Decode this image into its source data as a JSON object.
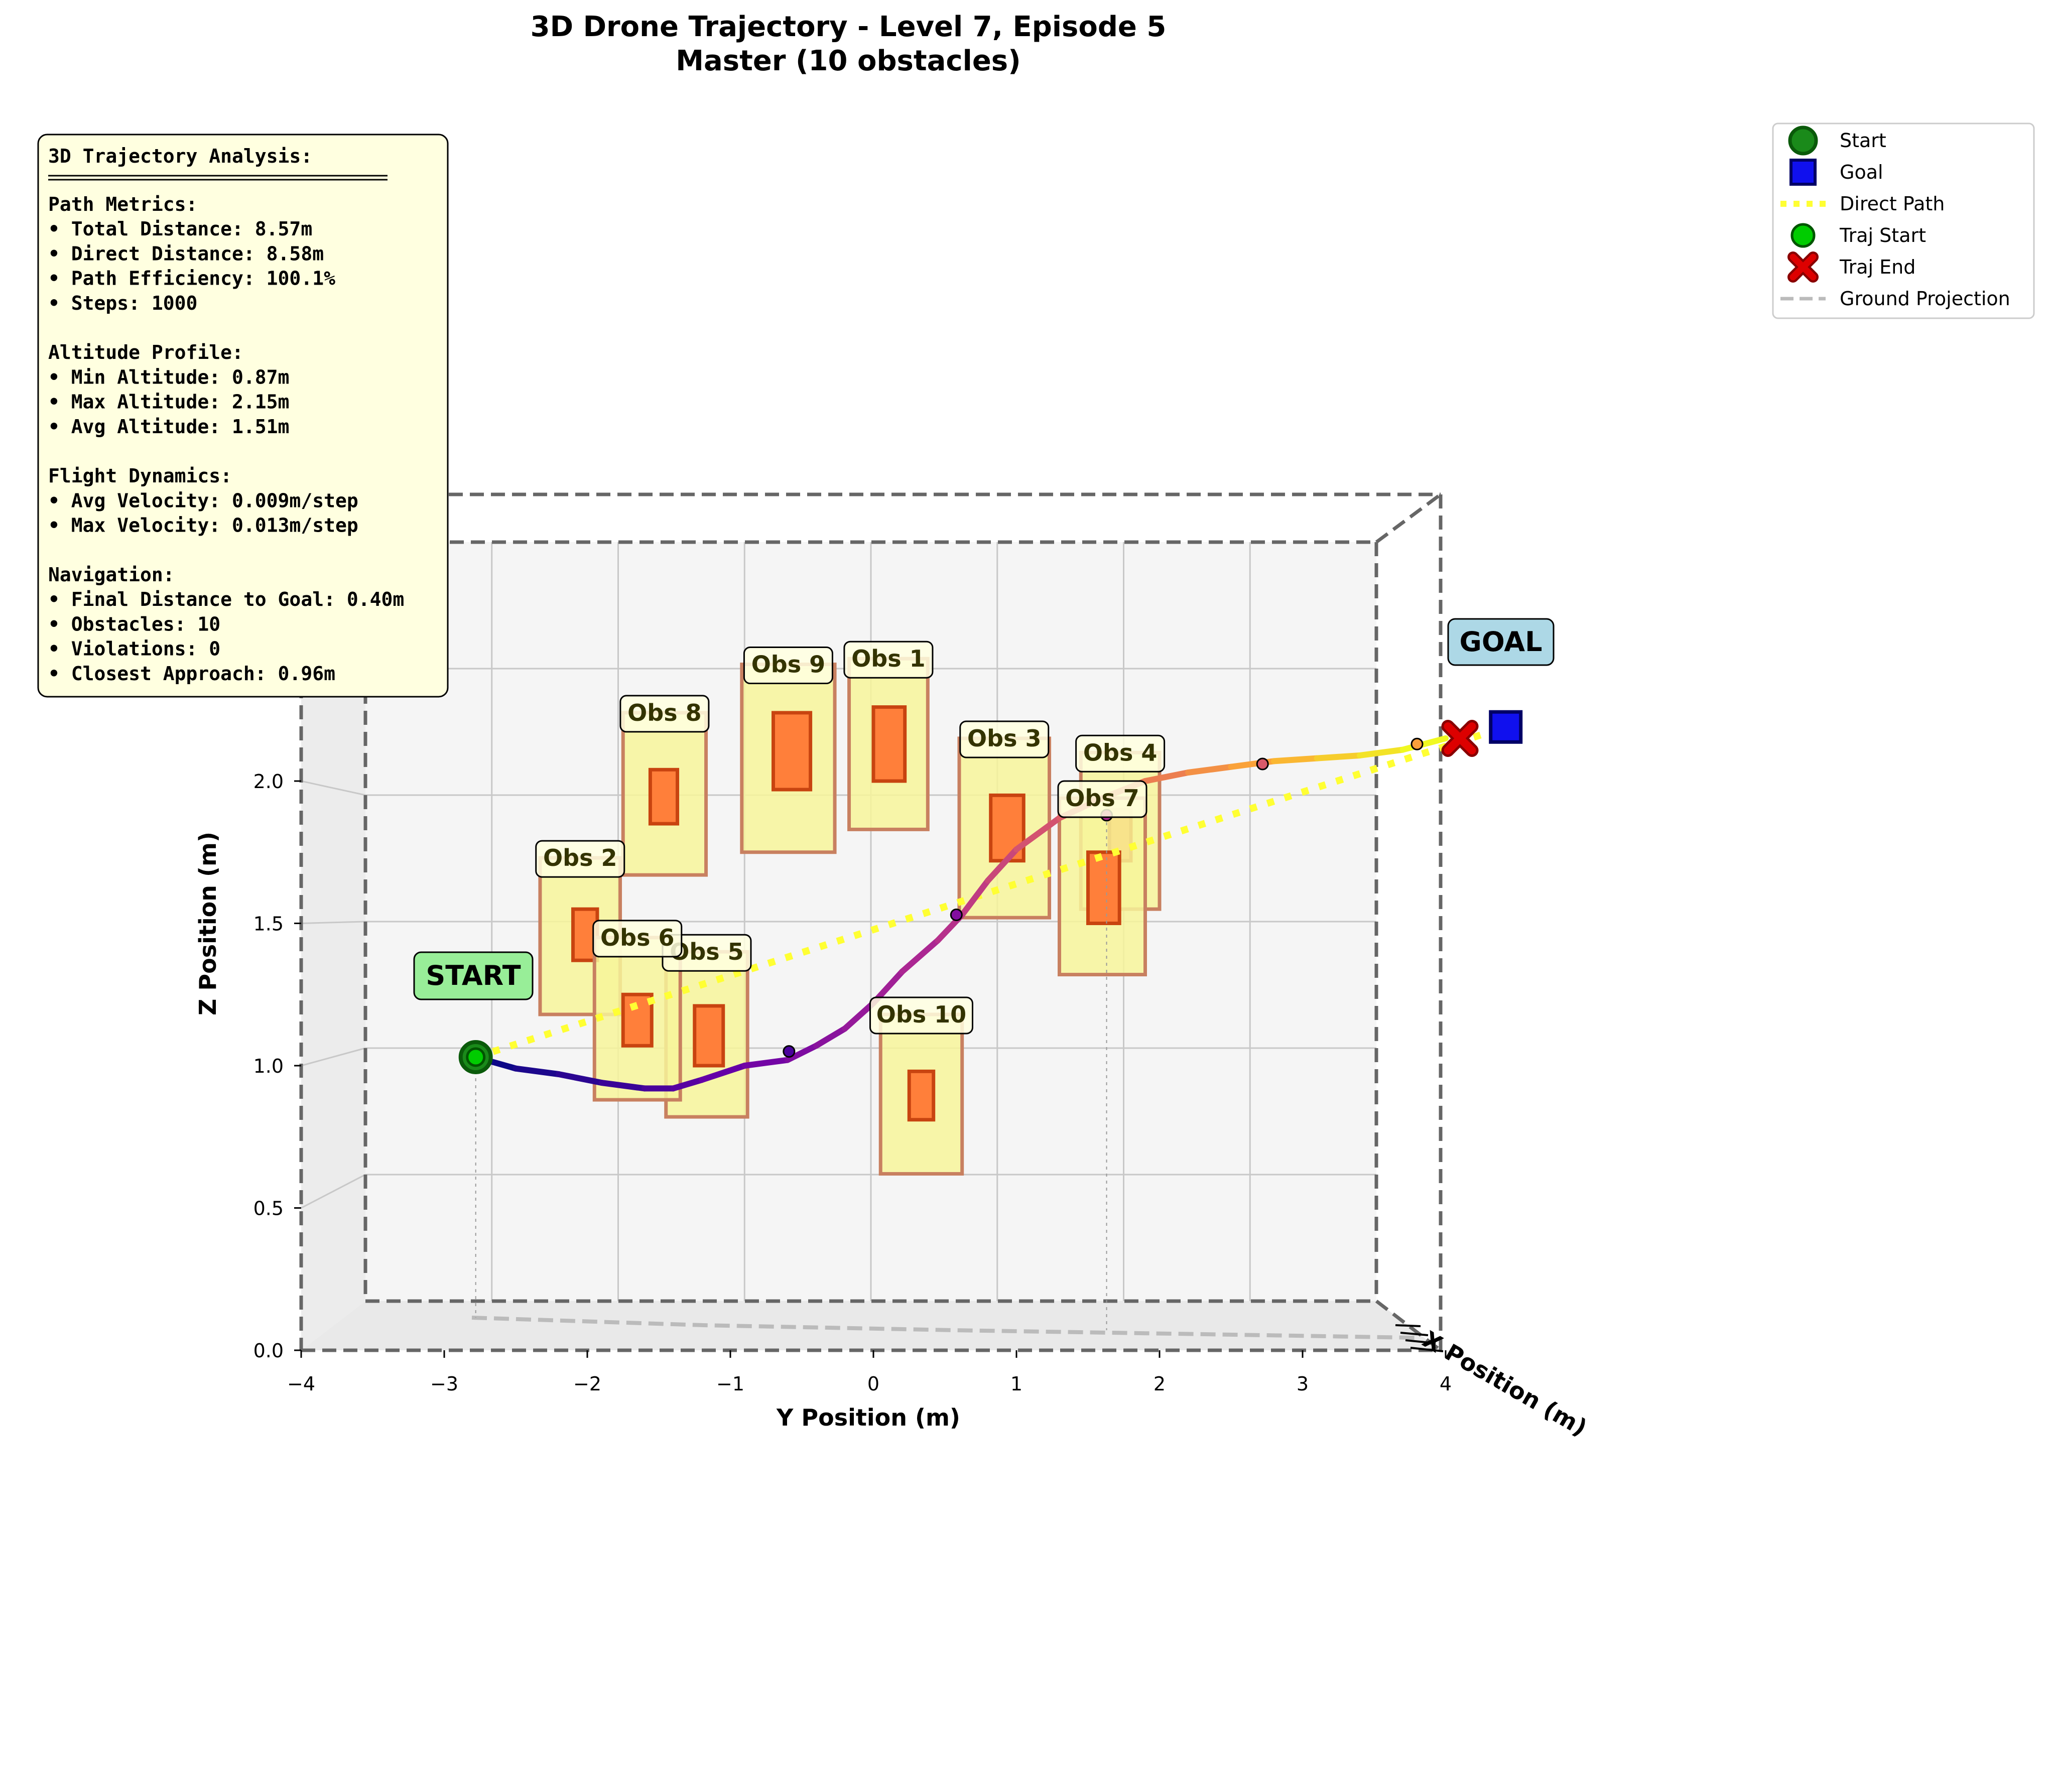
{
  "chart_data": {
    "type": "scatter",
    "title": "3D Drone Trajectory - Level 7, Episode 5",
    "subtitle": "Master (10 obstacles)",
    "xlabel": "Y Position (m)",
    "ylabel": "Z Position (m)",
    "zlabel": "X Position (m)",
    "xlim": [
      -4,
      4
    ],
    "ylim": [
      0,
      3.0
    ],
    "x_ticks": [
      "−4",
      "−3",
      "−2",
      "−1",
      "0",
      "1",
      "2",
      "3",
      "4"
    ],
    "y_ticks": [
      "0.0",
      "0.5",
      "1.0",
      "1.5",
      "2.0",
      "2.5"
    ],
    "start_label": "START",
    "goal_label": "GOAL",
    "start": [
      -2.78,
      1.03
    ],
    "goal": [
      4.42,
      2.19
    ],
    "traj_end": [
      4.1,
      2.15
    ],
    "trajectory": [
      [
        -2.78,
        1.03
      ],
      [
        -2.5,
        0.99
      ],
      [
        -2.2,
        0.97
      ],
      [
        -1.9,
        0.94
      ],
      [
        -1.6,
        0.92
      ],
      [
        -1.4,
        0.92
      ],
      [
        -1.2,
        0.95
      ],
      [
        -0.9,
        1.0
      ],
      [
        -0.6,
        1.02
      ],
      [
        -0.4,
        1.07
      ],
      [
        -0.2,
        1.13
      ],
      [
        0.0,
        1.22
      ],
      [
        0.2,
        1.33
      ],
      [
        0.45,
        1.44
      ],
      [
        0.62,
        1.53
      ],
      [
        0.8,
        1.65
      ],
      [
        1.0,
        1.76
      ],
      [
        1.3,
        1.87
      ],
      [
        1.6,
        1.94
      ],
      [
        1.9,
        2.0
      ],
      [
        2.2,
        2.03
      ],
      [
        2.5,
        2.05
      ],
      [
        2.8,
        2.07
      ],
      [
        3.1,
        2.08
      ],
      [
        3.4,
        2.09
      ],
      [
        3.7,
        2.11
      ],
      [
        4.0,
        2.15
      ]
    ],
    "waypoints": [
      [
        -0.59,
        1.05
      ],
      [
        0.58,
        1.53
      ],
      [
        1.63,
        1.88
      ],
      [
        2.72,
        2.06
      ],
      [
        3.8,
        2.13
      ]
    ],
    "obstacles": [
      {
        "label": "Obs 1",
        "zone": [
          -0.17,
          0.38,
          1.83,
          2.43
        ],
        "core": [
          0.0,
          0.22,
          2.0,
          2.26
        ]
      },
      {
        "label": "Obs 2",
        "zone": [
          -2.33,
          -1.77,
          1.18,
          1.73
        ],
        "core": [
          -2.1,
          -1.93,
          1.37,
          1.55
        ]
      },
      {
        "label": "Obs 3",
        "zone": [
          0.6,
          1.23,
          1.52,
          2.15
        ],
        "core": [
          0.82,
          1.05,
          1.72,
          1.95
        ]
      },
      {
        "label": "Obs 4",
        "zone": [
          1.45,
          2.0,
          1.55,
          2.1
        ],
        "core": [
          1.65,
          1.8,
          1.72,
          1.9
        ]
      },
      {
        "label": "Obs 5",
        "zone": [
          -1.45,
          -0.88,
          0.82,
          1.4
        ],
        "core": [
          -1.25,
          -1.05,
          1.0,
          1.21
        ]
      },
      {
        "label": "Obs 6",
        "zone": [
          -1.95,
          -1.35,
          0.88,
          1.45
        ],
        "core": [
          -1.75,
          -1.55,
          1.07,
          1.25
        ]
      },
      {
        "label": "Obs 7",
        "zone": [
          1.3,
          1.9,
          1.32,
          1.94
        ],
        "core": [
          1.5,
          1.72,
          1.5,
          1.75
        ]
      },
      {
        "label": "Obs 8",
        "zone": [
          -1.75,
          -1.17,
          1.67,
          2.24
        ],
        "core": [
          -1.56,
          -1.37,
          1.85,
          2.04
        ]
      },
      {
        "label": "Obs 9",
        "zone": [
          -0.92,
          -0.27,
          1.75,
          2.41
        ],
        "core": [
          -0.7,
          -0.44,
          1.97,
          2.24
        ]
      },
      {
        "label": "Obs 10",
        "zone": [
          0.05,
          0.62,
          0.62,
          1.18
        ],
        "core": [
          0.25,
          0.42,
          0.81,
          0.98
        ]
      }
    ],
    "legend": [
      "Start",
      "Goal",
      "Direct Path",
      "Traj Start",
      "Traj End",
      "Ground Projection"
    ],
    "legend_position": "top-right",
    "grid": true
  },
  "stats_box": {
    "title": "3D Trajectory Analysis:",
    "lines": [
      "Path Metrics:",
      "• Total Distance: 8.57m",
      "• Direct Distance: 8.58m",
      "• Path Efficiency: 100.1%",
      "• Steps: 1000",
      "",
      "Altitude Profile:",
      "• Min Altitude: 0.87m",
      "• Max Altitude: 2.15m",
      "• Avg Altitude: 1.51m",
      "",
      "Flight Dynamics:",
      "• Avg Velocity: 0.009m/step",
      "• Max Velocity: 0.013m/step",
      "",
      "Navigation:",
      "• Final Distance to Goal: 0.40m",
      "• Obstacles: 10",
      "• Violations: 0",
      "• Closest Approach: 0.96m"
    ]
  },
  "colors": {
    "start": "#00cc00",
    "goal": "#1010ee",
    "direct_path": "#ffff33",
    "traj_end": "#dd0000",
    "obstacle_zone": "#f7f59a",
    "obstacle_core": "#ff7f3a",
    "stats_bg": "#ffffe0",
    "start_label_bg": "#98ee98",
    "goal_label_bg": "#add8e6"
  }
}
